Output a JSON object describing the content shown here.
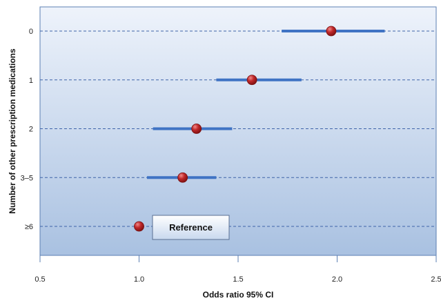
{
  "chart_data": {
    "type": "forest",
    "title": "",
    "xlabel": "Odds ratio 95% CI",
    "ylabel": "Number of other prescription medications",
    "xlim": [
      0.5,
      2.5
    ],
    "x_ticks": [
      "0.5",
      "1.0",
      "1.5",
      "2.0",
      "2.5"
    ],
    "x_tick_values": [
      0.5,
      1.0,
      1.5,
      2.0,
      2.5
    ],
    "grid": "dashed horizontal lines at each category",
    "categories": [
      "0",
      "1",
      "2",
      "3–5",
      "≥6"
    ],
    "odds_ratio": [
      1.97,
      1.57,
      1.29,
      1.22,
      1.0
    ],
    "ci_lower": [
      1.72,
      1.39,
      1.07,
      1.04,
      null
    ],
    "ci_upper": [
      2.24,
      1.82,
      1.47,
      1.39,
      null
    ],
    "reference_label": "Reference",
    "colors": {
      "background_top": "#eef3fb",
      "background_bottom": "#a9c1e1",
      "plot_border": "#5b7fb3",
      "ci_line": "#3f73c4",
      "point": "#c0282a",
      "gridline": "#3d63a8"
    }
  }
}
